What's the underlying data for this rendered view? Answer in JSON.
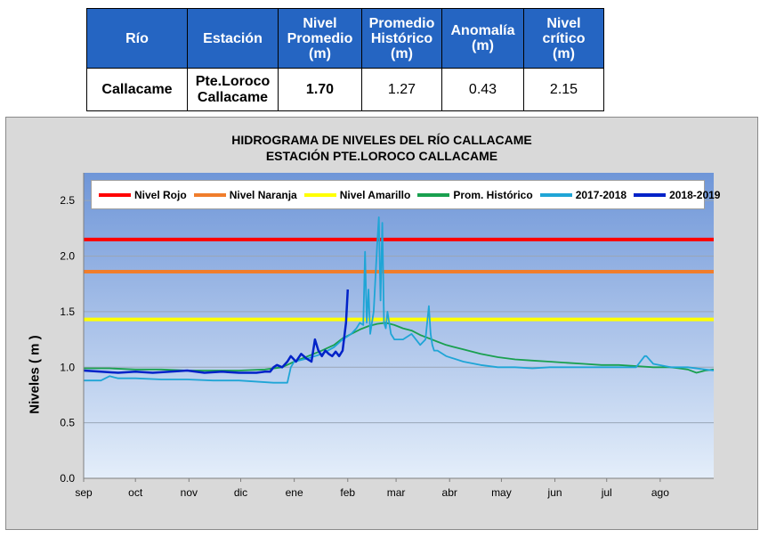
{
  "table": {
    "headers": [
      [
        "Río"
      ],
      [
        "Estación"
      ],
      [
        "Nivel",
        "Promedio",
        "(m)"
      ],
      [
        "Promedio",
        "Histórico",
        "(m)"
      ],
      [
        "Anomalía",
        "(m)"
      ],
      [
        "Nivel",
        "crítico",
        "(m)"
      ]
    ],
    "row": {
      "rio": "Callacame",
      "estacion": [
        "Pte.Loroco",
        "Callacame"
      ],
      "nivel_promedio": "1.70",
      "promedio_historico": "1.27",
      "anomalia": "0.43",
      "nivel_critico": "2.15"
    },
    "header_color": "#2565c2"
  },
  "chart_data": {
    "type": "line",
    "title": "HIDROGRAMA DE NIVELES DEL RÍO CALLACAME",
    "subtitle": "ESTACIÓN PTE.LOROCO CALLACAME",
    "xlabel": "",
    "ylabel": "Niveles ( m )",
    "ylim": [
      0,
      2.75
    ],
    "yticks": [
      "0.0",
      "0.5",
      "1.0",
      "1.5",
      "2.0",
      "2.5"
    ],
    "ytick_values": [
      0,
      0.5,
      1.0,
      1.5,
      2.0,
      2.5
    ],
    "x_tick_labels": [
      "sep",
      "oct",
      "nov",
      "dic",
      "ene",
      "feb",
      "mar",
      "abr",
      "may",
      "jun",
      "jul",
      "ago"
    ],
    "x_tick_days": [
      0,
      30,
      61,
      91,
      122,
      153,
      181,
      212,
      242,
      273,
      303,
      334
    ],
    "x_range_days": [
      0,
      365
    ],
    "grid": true,
    "legend_position": "top",
    "thresholds": [
      {
        "name": "Nivel Rojo",
        "value": 2.15,
        "color": "#ff0000"
      },
      {
        "name": "Nivel Naranja",
        "value": 1.86,
        "color": "#f07d2c"
      },
      {
        "name": "Nivel Amarillo",
        "value": 1.43,
        "color": "#ffff00"
      }
    ],
    "series": [
      {
        "name": "Prom. Histórico",
        "color": "#19a04f",
        "x_days": [
          0,
          15,
          30,
          45,
          60,
          75,
          90,
          105,
          115,
          122,
          130,
          138,
          145,
          150,
          155,
          160,
          165,
          170,
          175,
          180,
          185,
          190,
          195,
          200,
          205,
          210,
          220,
          230,
          240,
          250,
          260,
          270,
          280,
          290,
          300,
          310,
          320,
          330,
          340,
          350,
          355,
          360,
          365
        ],
        "values": [
          0.99,
          0.99,
          0.98,
          0.98,
          0.97,
          0.97,
          0.97,
          0.98,
          1.0,
          1.05,
          1.1,
          1.15,
          1.2,
          1.26,
          1.3,
          1.34,
          1.37,
          1.39,
          1.4,
          1.38,
          1.35,
          1.33,
          1.29,
          1.26,
          1.23,
          1.2,
          1.16,
          1.12,
          1.09,
          1.07,
          1.06,
          1.05,
          1.04,
          1.03,
          1.02,
          1.02,
          1.01,
          1.0,
          1.0,
          0.98,
          0.95,
          0.97,
          0.98
        ]
      },
      {
        "name": "2017-2018",
        "color": "#1fa5d6",
        "x_days": [
          0,
          10,
          15,
          20,
          30,
          45,
          60,
          75,
          90,
          110,
          118,
          120,
          122,
          130,
          138,
          145,
          150,
          155,
          158,
          160,
          162,
          163,
          164,
          165,
          166,
          168,
          170,
          171,
          172,
          173,
          174,
          175,
          176,
          178,
          180,
          185,
          190,
          195,
          198,
          200,
          201,
          202,
          203,
          205,
          210,
          220,
          230,
          240,
          250,
          260,
          270,
          280,
          290,
          300,
          310,
          320,
          325,
          326,
          330,
          340,
          350,
          365
        ],
        "values": [
          0.88,
          0.88,
          0.92,
          0.9,
          0.9,
          0.89,
          0.89,
          0.88,
          0.88,
          0.86,
          0.86,
          1.0,
          1.05,
          1.08,
          1.12,
          1.18,
          1.25,
          1.3,
          1.35,
          1.4,
          1.38,
          2.04,
          1.4,
          1.7,
          1.3,
          1.5,
          2.1,
          2.35,
          1.6,
          2.3,
          1.4,
          1.35,
          1.5,
          1.3,
          1.25,
          1.25,
          1.3,
          1.2,
          1.25,
          1.55,
          1.3,
          1.2,
          1.15,
          1.15,
          1.1,
          1.05,
          1.02,
          1.0,
          1.0,
          0.99,
          1.0,
          1.0,
          1.0,
          1.0,
          1.0,
          1.0,
          1.1,
          1.1,
          1.03,
          1.0,
          1.0,
          0.97
        ]
      },
      {
        "name": "2018-2019",
        "color": "#0022c8",
        "x_days": [
          0,
          10,
          20,
          30,
          40,
          50,
          60,
          70,
          80,
          90,
          100,
          105,
          108,
          110,
          112,
          115,
          118,
          120,
          123,
          126,
          129,
          132,
          134,
          136,
          138,
          140,
          142,
          144,
          146,
          148,
          150,
          152,
          153
        ],
        "values": [
          0.97,
          0.96,
          0.95,
          0.96,
          0.95,
          0.96,
          0.97,
          0.95,
          0.96,
          0.95,
          0.95,
          0.96,
          0.96,
          1.0,
          1.02,
          1.0,
          1.05,
          1.1,
          1.05,
          1.12,
          1.08,
          1.05,
          1.25,
          1.15,
          1.1,
          1.15,
          1.12,
          1.1,
          1.14,
          1.1,
          1.15,
          1.4,
          1.7
        ]
      }
    ]
  }
}
